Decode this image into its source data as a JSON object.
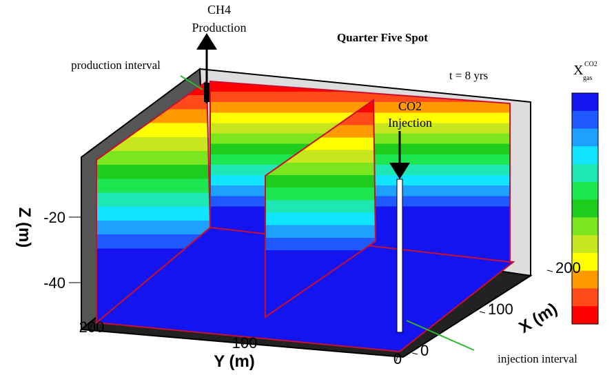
{
  "title": "Quarter Five Spot",
  "time_label": "t = 8 yrs",
  "production_well": [
    "CH4",
    "Production"
  ],
  "injection_well": [
    "CO2",
    "Injection"
  ],
  "production_interval": "production interval",
  "injection_interval": "injection interval",
  "axes": {
    "z": {
      "label": "Z (m)",
      "ticks": [
        -20,
        -40
      ]
    },
    "y": {
      "label": "Y (m)",
      "ticks": [
        200,
        100,
        0
      ]
    },
    "x": {
      "label": "X (m)",
      "ticks": [
        0,
        100,
        200
      ]
    }
  },
  "colorbar": {
    "label": "X",
    "subscript": "gas",
    "superscript": "CO2",
    "colors": [
      "#1414f0",
      "#1e5aff",
      "#1ea0ff",
      "#10e4ff",
      "#1ee6b4",
      "#1ee650",
      "#1ecc1e",
      "#7be61e",
      "#c8e61e",
      "#ffff00",
      "#ff9900",
      "#ff4a1a",
      "#ff0000"
    ]
  }
}
